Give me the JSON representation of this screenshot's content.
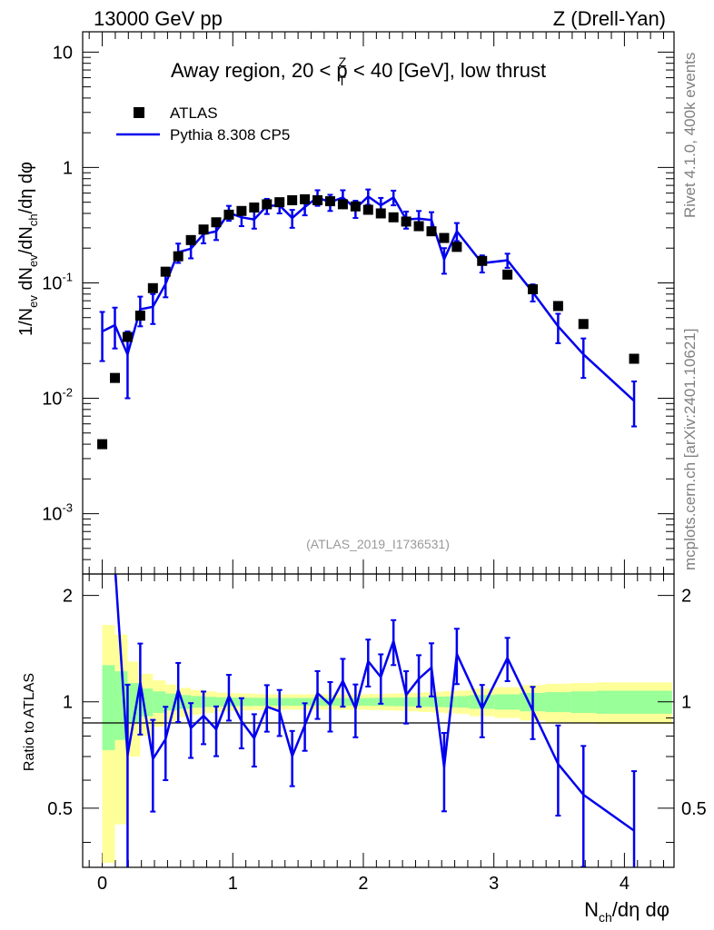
{
  "header": {
    "left": "13000 GeV pp",
    "right": "Z (Drell-Yan)"
  },
  "side_labels": {
    "rivet": "Rivet 4.1.0,  400k events",
    "mcplots": "mcplots.cern.ch [arXiv:2401.10621]"
  },
  "chart_data": {
    "type": "scatter",
    "title": "Away region, 20 < p_T^Z < 40 [GeV], low thrust",
    "analysis_label": "(ATLAS_2019_I1736531)",
    "xlabel": "N_ch/dη dφ",
    "ylabel": "1/N_ev dN_ev/dN_ch/dη dφ",
    "ratio_ylabel": "Ratio to ATLAS",
    "xlim": [
      -0.15,
      4.38
    ],
    "ylim": [
      0.0003,
      15
    ],
    "ratio_ylim": [
      0.34,
      2.3
    ],
    "yscale": "log",
    "x_ticks": [
      "0",
      "1",
      "2",
      "3",
      "4"
    ],
    "y_ticks": [
      "10",
      "1",
      "10^-1",
      "10^-2",
      "10^-3"
    ],
    "ratio_ticks": [
      "2",
      "1",
      "0.5"
    ],
    "legend": {
      "position": "top-left",
      "data_label": "ATLAS",
      "mc_label": "Pythia 8.308 CP5"
    },
    "colors": {
      "data": "#000000",
      "mc": "#0000ee",
      "band_outer": "#ffff99",
      "band_inner": "#99ff99"
    },
    "data": {
      "name": "ATLAS",
      "x": [
        0.0,
        0.097,
        0.194,
        0.291,
        0.388,
        0.485,
        0.582,
        0.679,
        0.776,
        0.873,
        0.97,
        1.067,
        1.164,
        1.261,
        1.358,
        1.455,
        1.552,
        1.649,
        1.746,
        1.843,
        1.94,
        2.037,
        2.134,
        2.231,
        2.328,
        2.425,
        2.522,
        2.619,
        2.716,
        2.91,
        3.104,
        3.298,
        3.492,
        3.686,
        4.074
      ],
      "y": [
        0.004,
        0.015,
        0.034,
        0.052,
        0.09,
        0.125,
        0.17,
        0.235,
        0.29,
        0.335,
        0.39,
        0.42,
        0.45,
        0.48,
        0.5,
        0.52,
        0.53,
        0.52,
        0.51,
        0.48,
        0.46,
        0.43,
        0.4,
        0.37,
        0.34,
        0.31,
        0.28,
        0.245,
        0.205,
        0.155,
        0.118,
        0.088,
        0.063,
        0.044,
        0.022
      ]
    },
    "mc": {
      "name": "Pythia 8.308 CP5",
      "x": [
        0.0,
        0.097,
        0.194,
        0.291,
        0.388,
        0.485,
        0.582,
        0.679,
        0.776,
        0.873,
        0.97,
        1.067,
        1.164,
        1.261,
        1.358,
        1.455,
        1.552,
        1.649,
        1.746,
        1.843,
        1.94,
        2.037,
        2.134,
        2.231,
        2.328,
        2.425,
        2.522,
        2.619,
        2.716,
        2.91,
        3.104,
        3.298,
        3.492,
        3.686,
        4.074
      ],
      "y": [
        0.038,
        0.043,
        0.024,
        0.059,
        0.062,
        0.098,
        0.184,
        0.198,
        0.265,
        0.28,
        0.405,
        0.37,
        0.355,
        0.465,
        0.47,
        0.365,
        0.455,
        0.55,
        0.5,
        0.55,
        0.44,
        0.56,
        0.47,
        0.55,
        0.355,
        0.36,
        0.35,
        0.16,
        0.28,
        0.148,
        0.157,
        0.083,
        0.042,
        0.024,
        0.0095
      ],
      "err_up": [
        0.018,
        0.018,
        0.014,
        0.017,
        0.018,
        0.023,
        0.035,
        0.035,
        0.045,
        0.045,
        0.06,
        0.06,
        0.06,
        0.07,
        0.07,
        0.065,
        0.07,
        0.085,
        0.08,
        0.085,
        0.075,
        0.085,
        0.075,
        0.08,
        0.06,
        0.06,
        0.06,
        0.04,
        0.05,
        0.025,
        0.022,
        0.014,
        0.012,
        0.009,
        0.0045
      ],
      "err_down": [
        0.017,
        0.016,
        0.014,
        0.017,
        0.018,
        0.023,
        0.035,
        0.035,
        0.045,
        0.045,
        0.06,
        0.06,
        0.06,
        0.07,
        0.07,
        0.065,
        0.07,
        0.085,
        0.08,
        0.085,
        0.075,
        0.085,
        0.075,
        0.08,
        0.06,
        0.06,
        0.06,
        0.04,
        0.05,
        0.025,
        0.022,
        0.014,
        0.012,
        0.009,
        0.0038
      ]
    },
    "bands": {
      "edges": [
        0.0,
        0.097,
        0.194,
        0.291,
        0.388,
        0.485,
        0.582,
        0.679,
        0.776,
        0.873,
        0.97,
        1.067,
        1.164,
        1.261,
        1.358,
        1.455,
        1.552,
        1.649,
        1.746,
        1.843,
        1.94,
        2.037,
        2.134,
        2.231,
        2.328,
        2.425,
        2.522,
        2.619,
        2.716,
        2.813,
        3.007,
        3.201,
        3.395,
        3.589,
        3.783,
        4.365
      ],
      "inner_half": [
        0.27,
        0.22,
        0.13,
        0.09,
        0.07,
        0.055,
        0.045,
        0.038,
        0.033,
        0.03,
        0.028,
        0.027,
        0.026,
        0.025,
        0.025,
        0.025,
        0.025,
        0.025,
        0.025,
        0.025,
        0.025,
        0.026,
        0.027,
        0.028,
        0.03,
        0.032,
        0.034,
        0.036,
        0.038,
        0.045,
        0.05,
        0.06,
        0.065,
        0.07,
        0.075
      ],
      "outer_half": [
        0.65,
        0.55,
        0.3,
        0.2,
        0.15,
        0.12,
        0.095,
        0.08,
        0.07,
        0.062,
        0.058,
        0.055,
        0.052,
        0.05,
        0.05,
        0.05,
        0.05,
        0.05,
        0.05,
        0.05,
        0.05,
        0.052,
        0.054,
        0.056,
        0.06,
        0.064,
        0.068,
        0.072,
        0.076,
        0.09,
        0.1,
        0.115,
        0.125,
        0.13,
        0.135
      ]
    }
  }
}
